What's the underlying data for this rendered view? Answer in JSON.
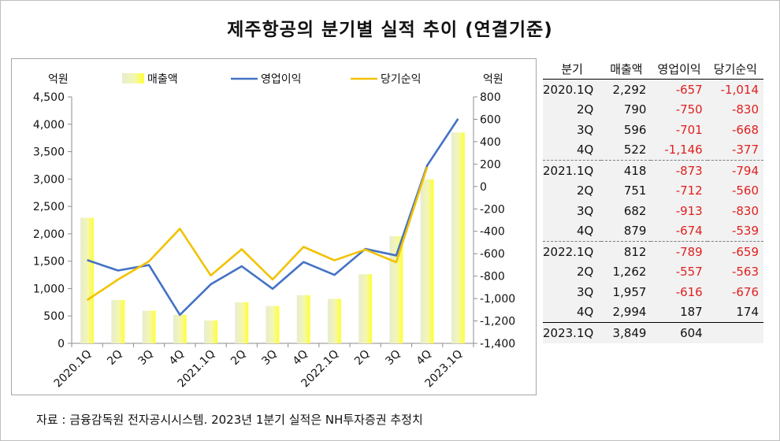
{
  "title": "제주항공의 분기별 실적 추이 (연결기준)",
  "source": "자료 : 금융감독원 전자공시시스템. 2023년 1분기 실적은 NH투자증권 추정치",
  "colors": {
    "revenue": "#ffff33",
    "revenue_light": "#e8ecd0",
    "op": "#4472c4",
    "net": "#f2c200",
    "neg": "#e02020"
  },
  "chart_data": {
    "type": "bar",
    "categories": [
      "2020.1Q",
      "2Q",
      "3Q",
      "4Q",
      "2021.1Q",
      "2Q",
      "3Q",
      "4Q",
      "2022.1Q",
      "2Q",
      "3Q",
      "4Q",
      "2023.1Q"
    ],
    "left_axis": {
      "unit": "억원",
      "min": 0,
      "max": 4500,
      "step": 500,
      "ticks": [
        "0",
        "500",
        "1,000",
        "1,500",
        "2,000",
        "2,500",
        "3,000",
        "3,500",
        "4,000",
        "4,500"
      ]
    },
    "right_axis": {
      "unit": "억원",
      "min": -1400,
      "max": 800,
      "step": 200,
      "ticks": [
        "-1,400",
        "-1,200",
        "-1,000",
        "-800",
        "-600",
        "-400",
        "-200",
        "0",
        "200",
        "400",
        "600",
        "800"
      ]
    },
    "legend_position": "top",
    "series": [
      {
        "name": "매출액",
        "type": "bar",
        "axis": "left",
        "values": [
          2292,
          790,
          596,
          522,
          418,
          751,
          682,
          879,
          812,
          1262,
          1957,
          2994,
          3849
        ]
      },
      {
        "name": "영업이익",
        "type": "line",
        "axis": "right",
        "values": [
          -657,
          -750,
          -701,
          -1146,
          -873,
          -712,
          -913,
          -674,
          -789,
          -557,
          -616,
          187,
          604
        ]
      },
      {
        "name": "당기순익",
        "type": "line",
        "axis": "right",
        "values": [
          -1014,
          -830,
          -668,
          -377,
          -794,
          -560,
          -830,
          -539,
          -659,
          -563,
          -676,
          174,
          null
        ]
      }
    ]
  },
  "table": {
    "headers": [
      "분기",
      "매출액",
      "영업이익",
      "당기순익"
    ],
    "groups": [
      [
        {
          "q": "2020.1Q",
          "rev": "2,292",
          "op": "-657",
          "net": "-1,014"
        },
        {
          "q": "2Q",
          "rev": "790",
          "op": "-750",
          "net": "-830"
        },
        {
          "q": "3Q",
          "rev": "596",
          "op": "-701",
          "net": "-668"
        },
        {
          "q": "4Q",
          "rev": "522",
          "op": "-1,146",
          "net": "-377"
        }
      ],
      [
        {
          "q": "2021.1Q",
          "rev": "418",
          "op": "-873",
          "net": "-794"
        },
        {
          "q": "2Q",
          "rev": "751",
          "op": "-712",
          "net": "-560"
        },
        {
          "q": "3Q",
          "rev": "682",
          "op": "-913",
          "net": "-830"
        },
        {
          "q": "4Q",
          "rev": "879",
          "op": "-674",
          "net": "-539"
        }
      ],
      [
        {
          "q": "2022.1Q",
          "rev": "812",
          "op": "-789",
          "net": "-659"
        },
        {
          "q": "2Q",
          "rev": "1,262",
          "op": "-557",
          "net": "-563"
        },
        {
          "q": "3Q",
          "rev": "1,957",
          "op": "-616",
          "net": "-676"
        },
        {
          "q": "4Q",
          "rev": "2,994",
          "op": "187",
          "net": "174"
        }
      ],
      [
        {
          "q": "2023.1Q",
          "rev": "3,849",
          "op": "604",
          "net": ""
        }
      ]
    ]
  }
}
